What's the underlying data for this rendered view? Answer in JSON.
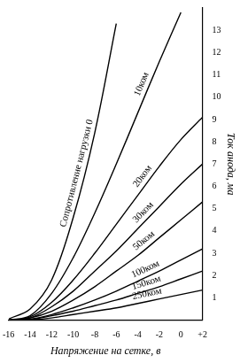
{
  "chart_data": {
    "type": "line",
    "x": [
      -16,
      -14,
      -12,
      -10,
      -8,
      -6,
      -4,
      -2,
      0,
      2
    ],
    "xlim": [
      -16,
      2
    ],
    "xticks": [
      -16,
      -14,
      -12,
      -10,
      -8,
      -6,
      -4,
      -2,
      0,
      {
        "value": 2,
        "label": "+2"
      }
    ],
    "ylim": [
      0,
      14
    ],
    "yticks": [
      1,
      2,
      3,
      4,
      5,
      6,
      7,
      8,
      9,
      10,
      11,
      12,
      13
    ],
    "x_label": "Напряжение на сетке, в",
    "y_label": "Ток анода, ма",
    "grid": false,
    "series": [
      {
        "name": "Сопротивление нагрузки 0",
        "color": "#000000",
        "line_style": "solid",
        "values": [
          0.05,
          0.5,
          1.8,
          4.6,
          8.4,
          13.3,
          null,
          null,
          null,
          null
        ]
      },
      {
        "name": "10ком",
        "color": "#000000",
        "line_style": "solid",
        "values": [
          0,
          0.2,
          1.2,
          2.8,
          4.8,
          7.0,
          9.3,
          11.6,
          13.8,
          null
        ]
      },
      {
        "name": "20ком",
        "color": "#000000",
        "line_style": "solid",
        "values": [
          0,
          0.15,
          0.8,
          1.8,
          3.0,
          4.3,
          5.6,
          6.9,
          8.1,
          9.1
        ]
      },
      {
        "name": "30ком",
        "color": "#000000",
        "line_style": "solid",
        "values": [
          0,
          0.1,
          0.6,
          1.3,
          2.2,
          3.1,
          4.1,
          5.1,
          6.1,
          7.0
        ]
      },
      {
        "name": "50ком",
        "color": "#000000",
        "line_style": "solid",
        "values": [
          0,
          0.1,
          0.4,
          0.9,
          1.5,
          2.2,
          2.9,
          3.7,
          4.5,
          5.3
        ]
      },
      {
        "name": "100ком",
        "color": "#000000",
        "line_style": "solid",
        "values": [
          0,
          0.05,
          0.25,
          0.55,
          0.9,
          1.3,
          1.75,
          2.2,
          2.7,
          3.2
        ]
      },
      {
        "name": "150ком",
        "color": "#000000",
        "line_style": "solid",
        "values": [
          0,
          0.03,
          0.2,
          0.4,
          0.65,
          0.9,
          1.2,
          1.5,
          1.85,
          2.2
        ]
      },
      {
        "name": "250ком",
        "color": "#000000",
        "line_style": "solid",
        "values": [
          0,
          0.02,
          0.1,
          0.25,
          0.4,
          0.55,
          0.75,
          0.95,
          1.15,
          1.35
        ]
      }
    ]
  }
}
